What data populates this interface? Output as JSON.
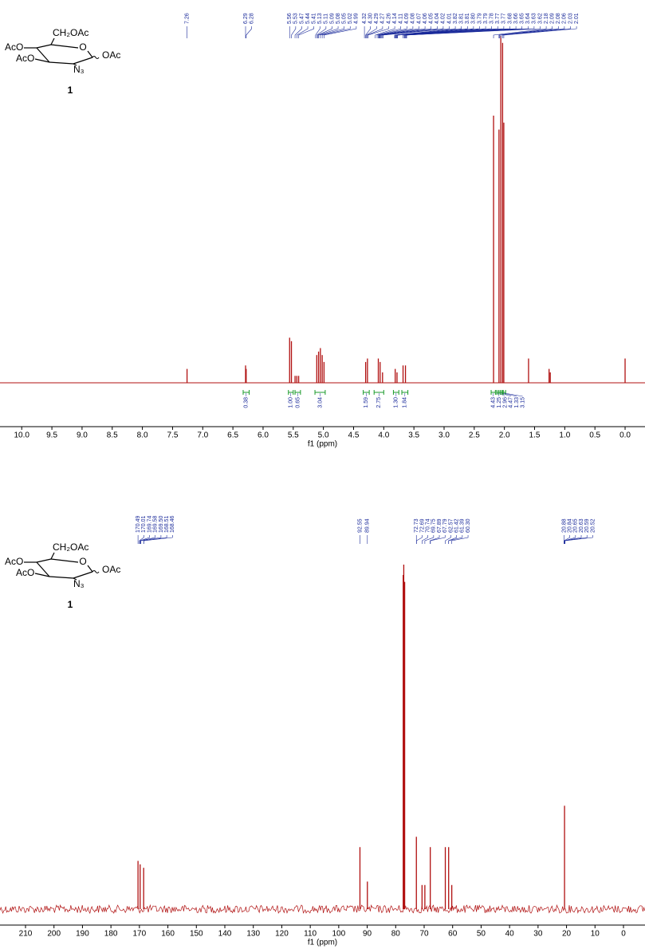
{
  "chart_data": [
    {
      "type": "nmr",
      "x_label": "f1 (ppm)",
      "structure_labels": [
        "CH₂OAc",
        "AcO",
        "AcO",
        "O",
        "OAc",
        "N₃",
        "1"
      ],
      "xlim": [
        10.36,
        -0.33
      ],
      "ylim": [
        0,
        1
      ],
      "xticks": [
        {
          "value": 10,
          "label": "10.0"
        },
        9.5,
        {
          "value": 9,
          "label": "9.0"
        },
        8.5,
        {
          "value": 8,
          "label": "8.0"
        },
        7.5,
        {
          "value": 7,
          "label": "7.0"
        },
        6.5,
        {
          "value": 6,
          "label": "6.0"
        },
        5.5,
        {
          "value": 5,
          "label": "5.0"
        },
        4.5,
        {
          "value": 4,
          "label": "4.0"
        },
        3.5,
        {
          "value": 3,
          "label": "3.0"
        },
        2.5,
        {
          "value": 2,
          "label": "2.0"
        },
        1.5,
        {
          "value": 1,
          "label": "1.0"
        },
        0.5,
        {
          "value": 0,
          "label": "0.0"
        }
      ],
      "x": [
        7.26,
        6.29,
        6.28,
        5.56,
        5.53,
        5.47,
        5.44,
        5.41,
        5.11,
        5.08,
        5.05,
        5.02,
        4.99,
        4.3,
        4.27,
        4.09,
        4.06,
        4.02,
        3.81,
        3.78,
        3.68,
        3.64,
        2.18,
        2.09,
        2.06,
        2.03,
        2.01,
        1.6,
        1.26,
        1.24,
        0.0
      ],
      "values": [
        0.04,
        0.05,
        0.04,
        0.13,
        0.12,
        0.02,
        0.02,
        0.02,
        0.08,
        0.09,
        0.1,
        0.08,
        0.06,
        0.06,
        0.07,
        0.07,
        0.06,
        0.03,
        0.04,
        0.03,
        0.05,
        0.05,
        0.77,
        0.73,
        1.0,
        0.98,
        0.75,
        0.07,
        0.04,
        0.03,
        0.07
      ],
      "color": "#b01010",
      "peak_labels": [
        7.26,
        6.29,
        6.28,
        5.56,
        5.53,
        5.47,
        5.44,
        5.41,
        5.13,
        5.11,
        5.09,
        5.08,
        5.05,
        5.02,
        4.99,
        4.32,
        {
          "value": 4.3,
          "label": "4.30"
        },
        4.29,
        4.27,
        4.26,
        4.14,
        4.11,
        4.09,
        4.08,
        4.07,
        4.06,
        4.05,
        4.04,
        4.02,
        4.01,
        3.82,
        3.81,
        3.81,
        {
          "value": 3.8,
          "label": "3.80"
        },
        3.79,
        3.79,
        3.78,
        3.77,
        3.77,
        3.68,
        3.66,
        3.65,
        3.64,
        3.63,
        3.62,
        2.18,
        2.09,
        2.08,
        2.06,
        2.03,
        2.01
      ],
      "integrals": {
        "ranges": [
          [
            6.33,
            6.23
          ],
          [
            5.58,
            5.5
          ],
          [
            5.47,
            5.38
          ],
          [
            5.14,
            4.97
          ],
          [
            4.34,
            4.24
          ],
          [
            4.16,
            4.0
          ],
          [
            3.84,
            3.75
          ],
          [
            3.7,
            3.6
          ],
          [
            2.22,
            2.15
          ],
          [
            2.13,
            2.1
          ],
          [
            2.1,
            2.07
          ],
          [
            2.07,
            2.04
          ],
          [
            2.04,
            2.02
          ],
          [
            2.02,
            1.98
          ]
        ],
        "values": [
          0.38,
          1.0,
          0.65,
          3.04,
          1.59,
          2.75,
          1.3,
          1.84,
          4.43,
          1.25,
          2.96,
          4.47,
          1.33,
          3.15
        ],
        "value_labels": [
          "0.38",
          "1.00",
          "0.65",
          "3.04",
          "1.59",
          "2.75",
          "1.30",
          "1.84",
          "4.43",
          "1.25",
          "2.96",
          "4.47",
          "1.33",
          "3.15"
        ]
      }
    },
    {
      "type": "nmr",
      "x_label": "f1 (ppm)",
      "structure_labels": [
        "CH₂OAc",
        "AcO",
        "AcO",
        "O",
        "OAc",
        "N₃",
        "1"
      ],
      "xlim": [
        218.96,
        -7.56
      ],
      "ylim": [
        0,
        1
      ],
      "xticks": [
        210,
        200,
        190,
        180,
        170,
        160,
        150,
        140,
        130,
        120,
        110,
        100,
        90,
        80,
        70,
        60,
        50,
        40,
        30,
        20,
        10,
        0
      ],
      "x": [
        170.49,
        169.74,
        168.51,
        92.55,
        89.94,
        77.36,
        77.16,
        76.84,
        72.73,
        70.74,
        69.75,
        67.85,
        62.57,
        61.4,
        60.3,
        20.7
      ],
      "values": [
        0.14,
        0.13,
        0.12,
        0.18,
        0.08,
        0.97,
        1.0,
        0.95,
        0.21,
        0.07,
        0.07,
        0.18,
        0.18,
        0.18,
        0.07,
        0.3
      ],
      "color": "#b01010",
      "peak_labels": [
        170.49,
        170.01,
        169.74,
        169.58,
        {
          "value": 169.5,
          "label": "169.50"
        },
        168.51,
        168.46,
        92.55,
        89.94,
        72.73,
        72.69,
        70.74,
        69.75,
        67.89,
        67.79,
        62.57,
        61.42,
        61.39,
        {
          "value": 60.3,
          "label": "60.30"
        },
        20.88,
        20.84,
        20.65,
        20.63,
        20.59,
        20.52
      ]
    }
  ]
}
